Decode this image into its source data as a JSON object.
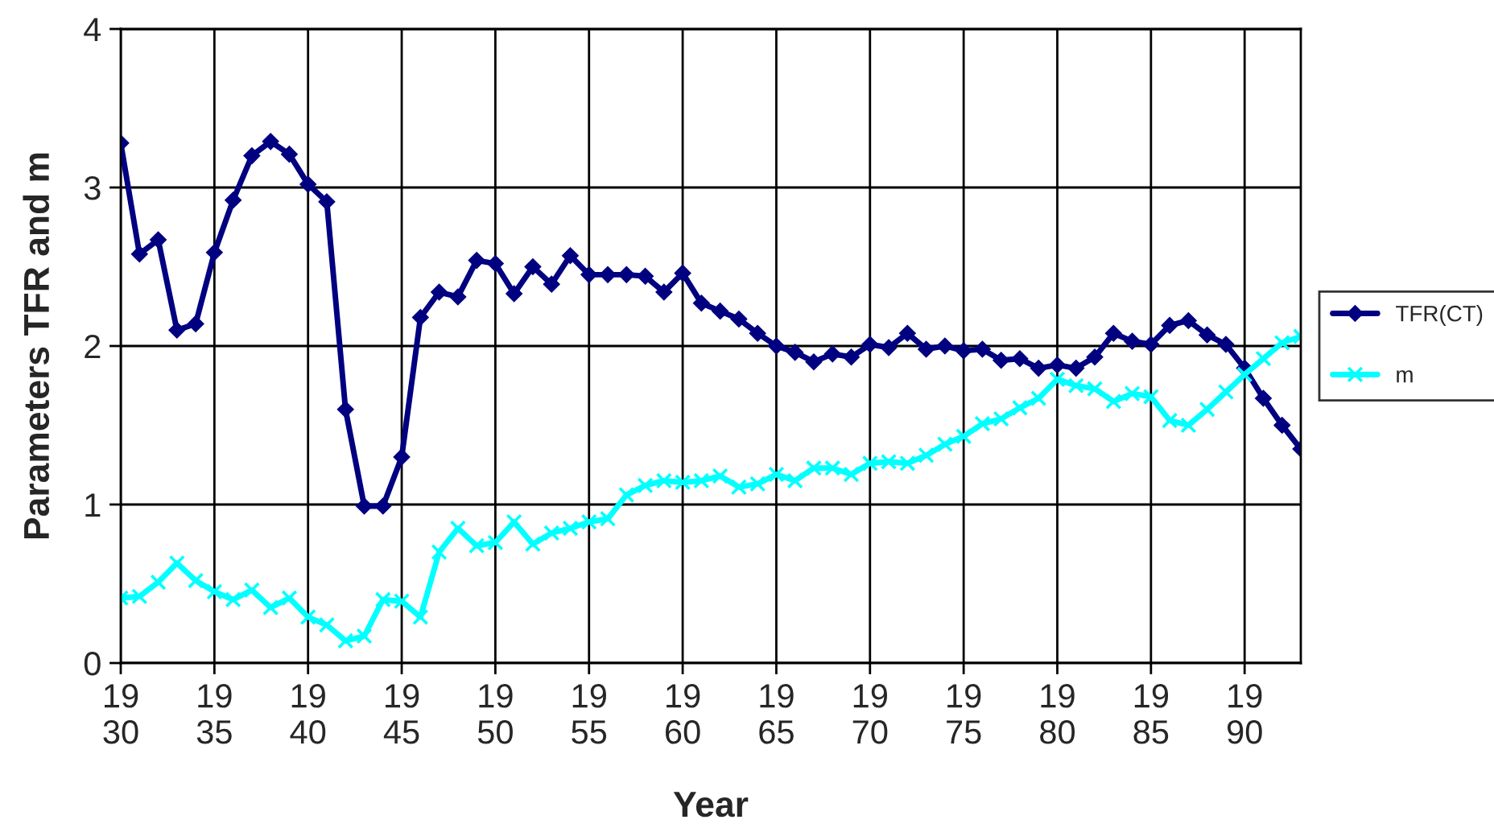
{
  "chart_data": {
    "type": "line",
    "xlabel": "Year",
    "ylabel": "Parameters TFR and m",
    "categories": [
      "19\n30",
      null,
      null,
      null,
      null,
      "19\n35",
      null,
      null,
      null,
      null,
      "19\n40",
      null,
      null,
      null,
      null,
      "19\n45",
      null,
      null,
      null,
      null,
      "19\n50",
      null,
      null,
      null,
      null,
      "19\n55",
      null,
      null,
      null,
      null,
      "19\n60",
      null,
      null,
      null,
      null,
      "19\n65",
      null,
      null,
      null,
      null,
      "19\n70",
      null,
      null,
      null,
      null,
      "19\n75",
      null,
      null,
      null,
      null,
      "19\n80",
      null,
      null,
      null,
      null,
      "19\n85",
      null,
      null,
      null,
      null,
      "19\n90",
      null,
      null,
      null
    ],
    "series": [
      {
        "name": "TFR(CT)",
        "color": "#000080",
        "marker": "diamond",
        "values": [
          3.28,
          2.58,
          2.67,
          2.1,
          2.14,
          2.59,
          2.92,
          3.2,
          3.29,
          3.21,
          3.02,
          2.91,
          1.6,
          0.99,
          0.99,
          1.3,
          2.18,
          2.34,
          2.31,
          2.54,
          2.52,
          2.33,
          2.5,
          2.39,
          2.57,
          2.45,
          2.45,
          2.45,
          2.44,
          2.34,
          2.46,
          2.27,
          2.22,
          2.17,
          2.08,
          2.0,
          1.96,
          1.9,
          1.95,
          1.93,
          2.01,
          1.99,
          2.08,
          1.98,
          2.0,
          1.97,
          1.98,
          1.91,
          1.92,
          1.86,
          1.88,
          1.86,
          1.93,
          2.08,
          2.03,
          2.01,
          2.13,
          2.16,
          2.07,
          2.01,
          1.86,
          1.67,
          1.5,
          1.35
        ]
      },
      {
        "name": "m",
        "color": "#00ffff",
        "marker": "cross",
        "values": [
          0.41,
          0.42,
          0.51,
          0.63,
          0.52,
          0.45,
          0.4,
          0.46,
          0.35,
          0.41,
          0.29,
          0.24,
          0.14,
          0.17,
          0.4,
          0.39,
          0.29,
          0.7,
          0.85,
          0.74,
          0.76,
          0.89,
          0.75,
          0.82,
          0.85,
          0.89,
          0.91,
          1.06,
          1.12,
          1.15,
          1.14,
          1.15,
          1.18,
          1.11,
          1.13,
          1.19,
          1.15,
          1.23,
          1.23,
          1.19,
          1.26,
          1.27,
          1.26,
          1.31,
          1.38,
          1.43,
          1.51,
          1.54,
          1.61,
          1.67,
          1.79,
          1.75,
          1.73,
          1.65,
          1.7,
          1.68,
          1.53,
          1.5,
          1.6,
          1.71,
          1.82,
          1.92,
          2.02,
          2.06
        ]
      }
    ],
    "ylim": [
      0,
      4
    ],
    "yticks": [
      0,
      1,
      2,
      3,
      4
    ],
    "grid": true,
    "legend": "right",
    "line_style": "solid"
  }
}
